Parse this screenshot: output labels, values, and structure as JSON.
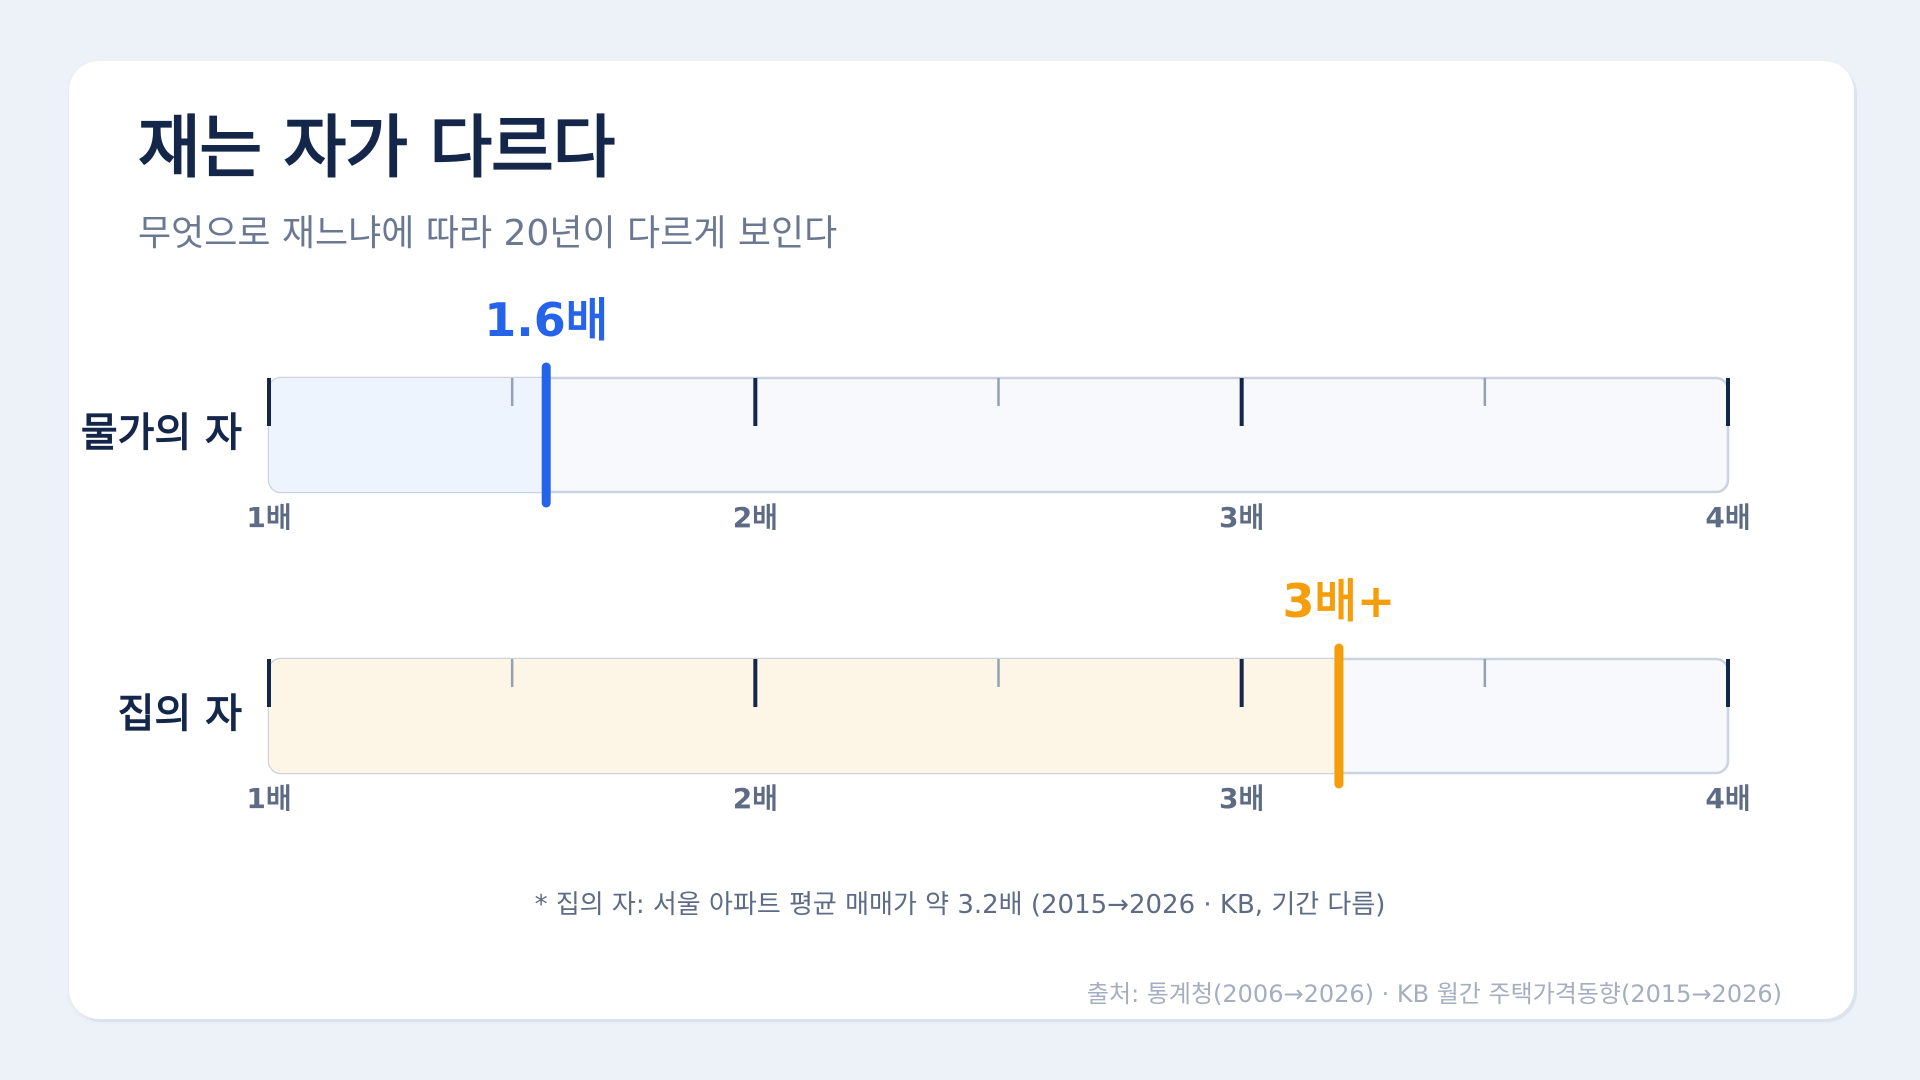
{
  "header": {
    "title": "재는 자가 다르다",
    "subtitle": "무엇으로 재느냐에 따라 20년이 다르게 보인다"
  },
  "chart_data": {
    "type": "bar",
    "orientation": "horizontal",
    "xlim": [
      1,
      4
    ],
    "major_ticks": [
      1,
      2,
      3,
      4
    ],
    "minor_ticks": [
      1.5,
      2.5,
      3.5
    ],
    "tick_labels": [
      "1배",
      "2배",
      "3배",
      "4배"
    ],
    "series": [
      {
        "name": "물가의 자",
        "value": 1.57,
        "value_label": "1.6배",
        "color": "#2563eb",
        "fill": "#edf4fe"
      },
      {
        "name": "집의 자",
        "value": 3.2,
        "value_label": "3배+",
        "color": "#f59e0b",
        "fill": "#fdf6e6"
      }
    ]
  },
  "footer": {
    "note": "* 집의 자: 서울 아파트 평균 매매가 약 3.2배 (2015→2026 · KB, 기간 다름)",
    "source": "출처: 통계청(2006→2026) · KB 월간 주택가격동향(2015→2026)"
  }
}
